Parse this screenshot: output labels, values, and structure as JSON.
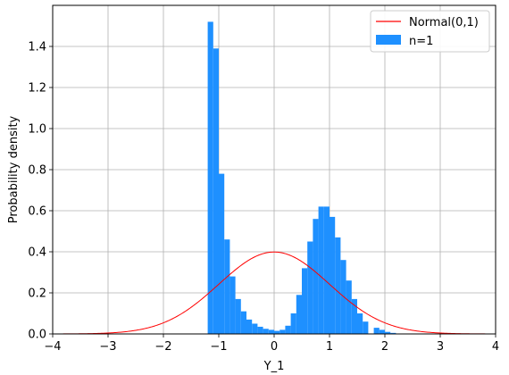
{
  "chart_data": {
    "type": "bar",
    "title": "",
    "xlabel": "Y_1",
    "ylabel": "Probability density",
    "xlim": [
      -4,
      4
    ],
    "ylim": [
      0,
      1.6
    ],
    "xticks": [
      "−4",
      "−3",
      "−2",
      "−1",
      "0",
      "1",
      "2",
      "3",
      "4"
    ],
    "yticks": [
      "0.0",
      "0.2",
      "0.4",
      "0.6",
      "0.8",
      "1.0",
      "1.2",
      "1.4"
    ],
    "grid": true,
    "legend": {
      "position": "top-right",
      "entries": [
        {
          "label": "Normal(0,1)",
          "color": "#ff0000",
          "kind": "line"
        },
        {
          "label": "n=1",
          "color": "#1e90ff",
          "kind": "patch"
        }
      ]
    },
    "series": [
      {
        "name": "n=1",
        "type": "histogram",
        "color": "#1e90ff",
        "bin_width": 0.1,
        "bin_starts": [
          -1.2,
          -1.1,
          -1.0,
          -0.9,
          -0.8,
          -0.7,
          -0.6,
          -0.5,
          -0.4,
          -0.3,
          -0.2,
          -0.1,
          0.0,
          0.1,
          0.2,
          0.3,
          0.4,
          0.5,
          0.6,
          0.7,
          0.8,
          0.9,
          1.0,
          1.1,
          1.2,
          1.3,
          1.4,
          1.5,
          1.6,
          1.7,
          1.8,
          1.9,
          2.0,
          2.1
        ],
        "values": [
          1.52,
          1.39,
          0.78,
          0.46,
          0.28,
          0.17,
          0.11,
          0.07,
          0.05,
          0.035,
          0.025,
          0.02,
          0.015,
          0.02,
          0.04,
          0.1,
          0.19,
          0.32,
          0.45,
          0.56,
          0.62,
          0.62,
          0.57,
          0.47,
          0.36,
          0.26,
          0.17,
          0.1,
          0.06,
          0.0,
          0.03,
          0.02,
          0.01,
          0.005
        ]
      },
      {
        "name": "Normal(0,1)",
        "type": "line",
        "color": "#ff0000",
        "function": "standard_normal_pdf",
        "x_range": [
          -4,
          4
        ]
      }
    ]
  }
}
